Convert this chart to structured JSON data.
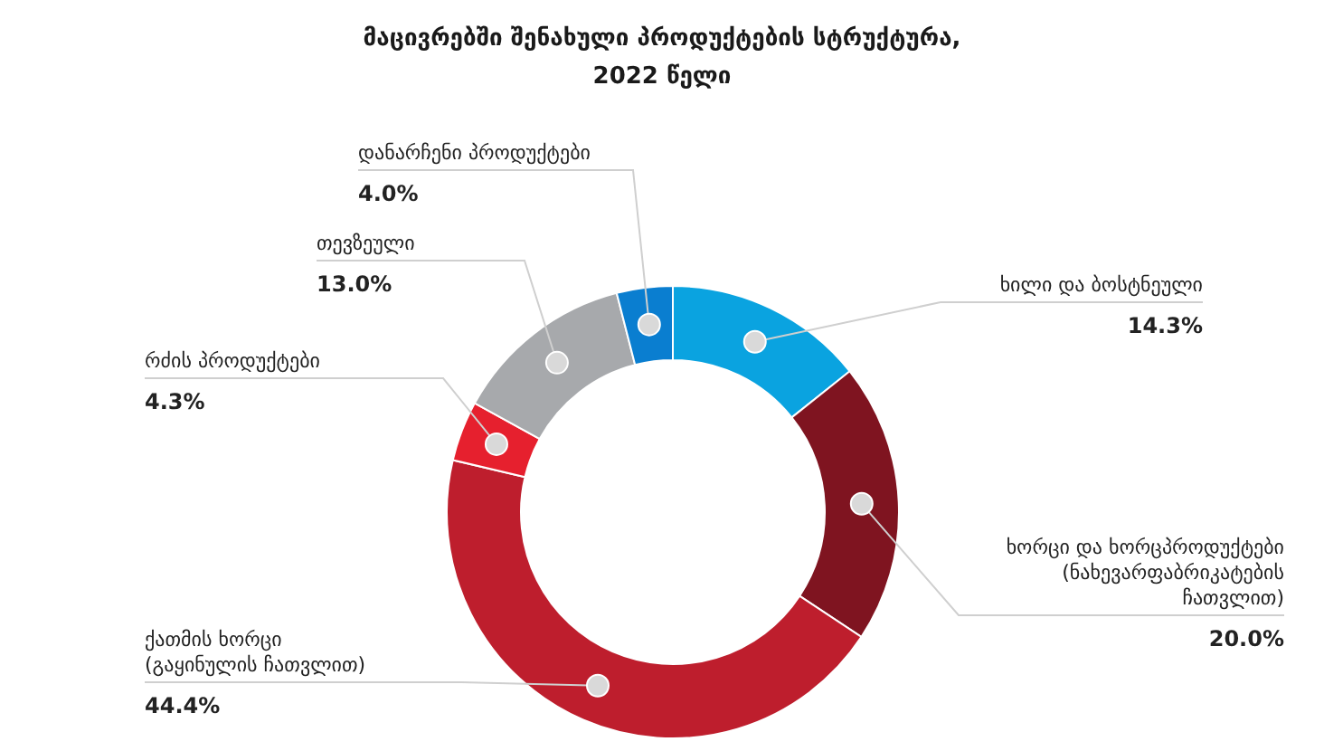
{
  "chart_data": {
    "type": "donut",
    "title": "მაცივრებში შენახული პროდუქტების სტრუქტურა, 2022 წელი",
    "categories": [
      "ხილი და ბოსტნეული",
      "ხორცი და ხორცპროდუქტები (ნახევარფაბრიკატების ჩათვლით)",
      "ქათმის ხორცი (გაყინულის ჩათვლით)",
      "რძის პროდუქტები",
      "თევზეული",
      "დანარჩენი პროდუქტები"
    ],
    "values": [
      14.3,
      20.0,
      44.4,
      4.3,
      13.0,
      4.0
    ],
    "colors": [
      "#0aa3e0",
      "#7f1420",
      "#be1e2d",
      "#e6202e",
      "#a7a9ac",
      "#0a7ed0"
    ],
    "value_labels": [
      "14.3%",
      "20.0%",
      "44.4%",
      "4.3%",
      "13.0%",
      "4.0%"
    ]
  }
}
